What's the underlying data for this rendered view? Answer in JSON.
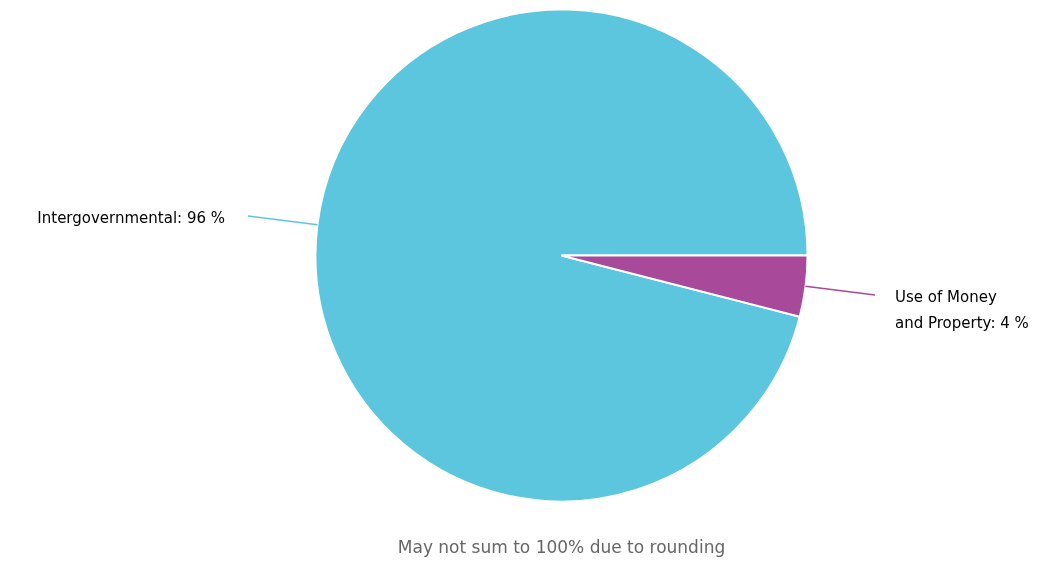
{
  "chart_data": {
    "type": "pie",
    "categories": [
      "Intergovernmental",
      "Use of Money and Property"
    ],
    "values": [
      96,
      4
    ],
    "colors": [
      "#5bc6de",
      "#a8499a"
    ],
    "value_labels": [
      "96 %",
      "4 %"
    ],
    "annotations": [
      "May not sum to 100% due to rounding"
    ]
  }
}
